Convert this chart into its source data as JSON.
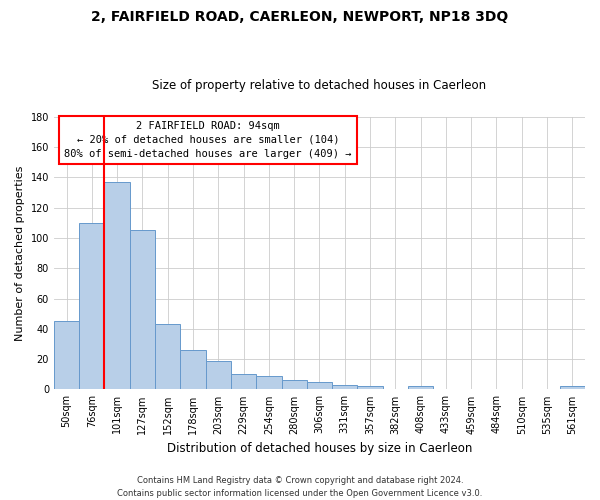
{
  "title": "2, FAIRFIELD ROAD, CAERLEON, NEWPORT, NP18 3DQ",
  "subtitle": "Size of property relative to detached houses in Caerleon",
  "xlabel": "Distribution of detached houses by size in Caerleon",
  "ylabel": "Number of detached properties",
  "bar_color": "#b8cfe8",
  "bar_edge_color": "#6699cc",
  "categories": [
    "50sqm",
    "76sqm",
    "101sqm",
    "127sqm",
    "152sqm",
    "178sqm",
    "203sqm",
    "229sqm",
    "254sqm",
    "280sqm",
    "306sqm",
    "331sqm",
    "357sqm",
    "382sqm",
    "408sqm",
    "433sqm",
    "459sqm",
    "484sqm",
    "510sqm",
    "535sqm",
    "561sqm"
  ],
  "values": [
    45,
    110,
    137,
    105,
    43,
    26,
    19,
    10,
    9,
    6,
    5,
    3,
    2,
    0,
    2,
    0,
    0,
    0,
    0,
    0,
    2
  ],
  "ylim": [
    0,
    180
  ],
  "yticks": [
    0,
    20,
    40,
    60,
    80,
    100,
    120,
    140,
    160,
    180
  ],
  "annotation_title": "2 FAIRFIELD ROAD: 94sqm",
  "annotation_line1": "← 20% of detached houses are smaller (104)",
  "annotation_line2": "80% of semi-detached houses are larger (409) →",
  "footer_line1": "Contains HM Land Registry data © Crown copyright and database right 2024.",
  "footer_line2": "Contains public sector information licensed under the Open Government Licence v3.0.",
  "background_color": "#ffffff",
  "grid_color": "#cccccc",
  "title_fontsize": 10,
  "subtitle_fontsize": 8.5,
  "ylabel_fontsize": 8,
  "xlabel_fontsize": 8.5,
  "tick_fontsize": 7,
  "footer_fontsize": 6,
  "annotation_fontsize": 7.5
}
